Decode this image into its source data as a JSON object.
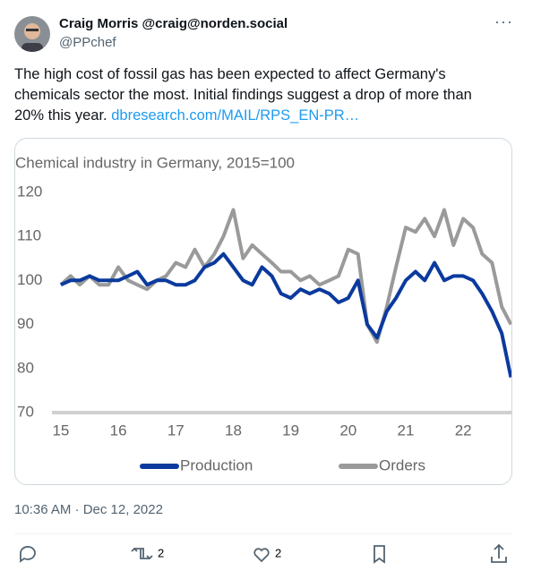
{
  "tweet": {
    "display_name": "Craig Morris @craig@norden.social",
    "handle": "@PPchef",
    "text": "The high cost of fossil gas has been expected to affect Germany's chemicals sector the most. Initial findings suggest a drop of more than 20% this year.",
    "link": "dbresearch.com/MAIL/RPS_EN-PR…",
    "timestamp": "10:36 AM · Dec 12, 2022",
    "retweets": 2,
    "likes": 2
  },
  "chart_data": {
    "type": "line",
    "title": "Chemical industry in Germany, 2015=100",
    "x": [
      15,
      15.17,
      15.33,
      15.5,
      15.67,
      15.83,
      16,
      16.17,
      16.33,
      16.5,
      16.67,
      16.83,
      17,
      17.17,
      17.33,
      17.5,
      17.67,
      17.83,
      18,
      18.17,
      18.33,
      18.5,
      18.67,
      18.83,
      19,
      19.17,
      19.33,
      19.5,
      19.67,
      19.83,
      20,
      20.17,
      20.33,
      20.5,
      20.67,
      20.83,
      21,
      21.17,
      21.33,
      21.5,
      21.67,
      21.83,
      22,
      22.17,
      22.33,
      22.5,
      22.67,
      22.83
    ],
    "series": [
      {
        "name": "Production",
        "color": "#0b3a9e",
        "values": [
          99,
          100,
          100,
          101,
          100,
          100,
          100,
          101,
          102,
          99,
          100,
          100,
          99,
          99,
          100,
          103,
          104,
          106,
          103,
          100,
          99,
          103,
          101,
          97,
          96,
          98,
          97,
          98,
          97,
          95,
          96,
          100,
          90,
          87,
          93,
          96,
          100,
          102,
          100,
          104,
          100,
          101,
          101,
          100,
          97,
          93,
          88,
          78
        ]
      },
      {
        "name": "Orders",
        "color": "#9a9a9a",
        "values": [
          99,
          101,
          99,
          101,
          99,
          99,
          103,
          100,
          99,
          98,
          100,
          101,
          104,
          103,
          107,
          103,
          106,
          110,
          116,
          105,
          108,
          106,
          104,
          102,
          102,
          100,
          101,
          99,
          100,
          101,
          107,
          106,
          90,
          86,
          94,
          103,
          112,
          111,
          114,
          110,
          116,
          108,
          114,
          112,
          106,
          104,
          94,
          90
        ]
      }
    ],
    "xlim": [
      14.97,
      22.87
    ],
    "xticks": [
      15,
      16,
      17,
      18,
      19,
      20,
      21,
      22
    ],
    "ylim": [
      70,
      122
    ],
    "yticks": [
      70,
      80,
      90,
      100,
      110,
      120
    ],
    "grid": false
  }
}
